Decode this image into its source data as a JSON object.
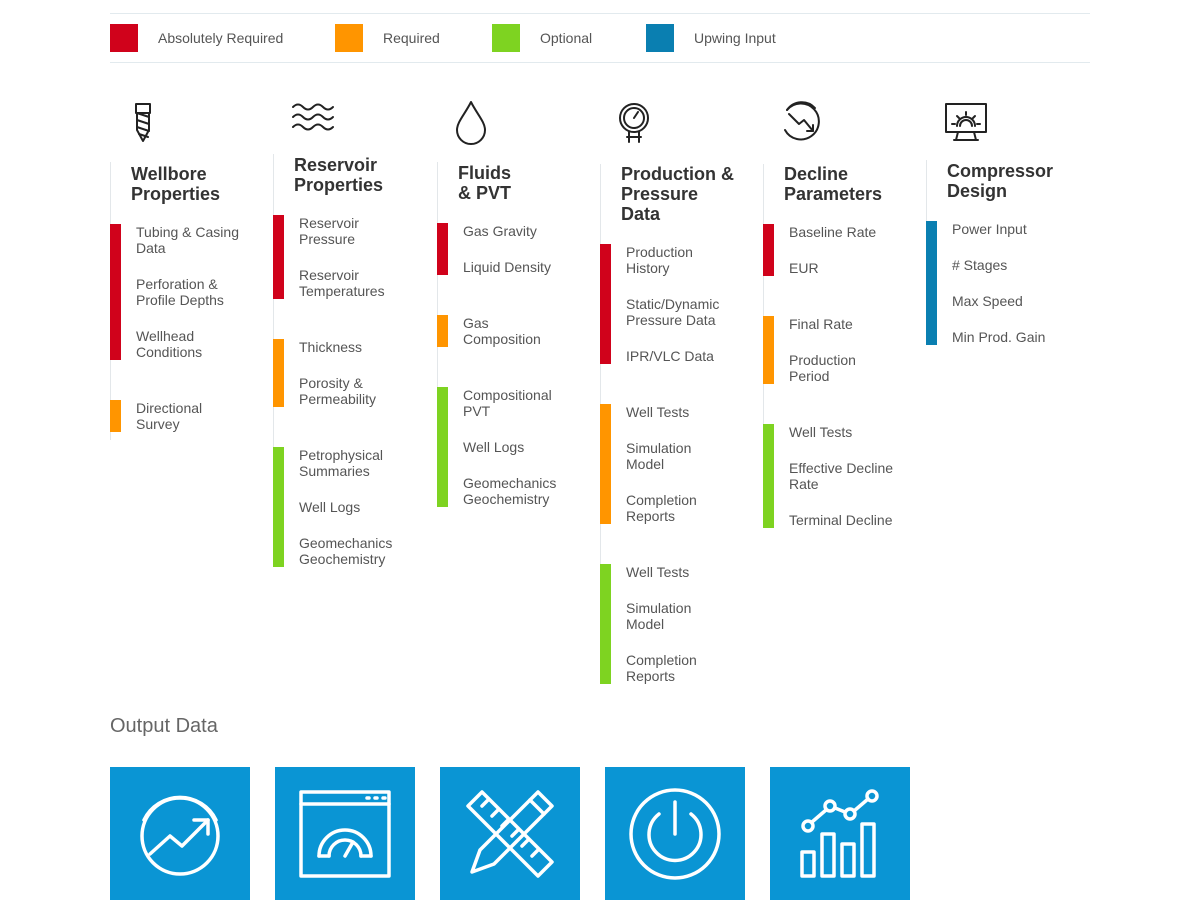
{
  "legend": [
    {
      "label": "Absolutely Required",
      "color": "#d0021b"
    },
    {
      "label": "Required",
      "color": "#ff9500"
    },
    {
      "label": "Optional",
      "color": "#7ed321"
    },
    {
      "label": "Upwing Input",
      "color": "#0a7fb1"
    }
  ],
  "columns": [
    {
      "key": "wellbore",
      "icon": "drill-bit-icon",
      "title": [
        "Wellbore",
        "Properties"
      ],
      "groups": [
        {
          "level": "Absolutely Required",
          "color": "#d0021b",
          "items": [
            [
              "Tubing & Casing",
              "Data"
            ],
            [
              "Perforation &",
              "Profile Depths"
            ],
            [
              "Wellhead",
              "Conditions"
            ]
          ]
        },
        {
          "level": "Required",
          "color": "#ff9500",
          "items": [
            [
              "Directional",
              "Survey"
            ]
          ]
        }
      ]
    },
    {
      "key": "reservoir",
      "icon": "waves-icon",
      "title": [
        "Reservoir",
        "Properties"
      ],
      "groups": [
        {
          "level": "Absolutely Required",
          "color": "#d0021b",
          "items": [
            [
              "Reservoir",
              "Pressure"
            ],
            [
              "Reservoir",
              "Temperatures"
            ]
          ]
        },
        {
          "level": "Required",
          "color": "#ff9500",
          "items": [
            [
              "Thickness"
            ],
            [
              "Porosity &",
              "Permeability"
            ]
          ]
        },
        {
          "level": "Optional",
          "color": "#7ed321",
          "items": [
            [
              "Petrophysical",
              "Summaries"
            ],
            [
              "Well Logs"
            ],
            [
              "Geomechanics",
              "Geochemistry"
            ]
          ]
        }
      ]
    },
    {
      "key": "fluids",
      "icon": "droplet-icon",
      "title": [
        "Fluids",
        "& PVT"
      ],
      "groups": [
        {
          "level": "Absolutely Required",
          "color": "#d0021b",
          "items": [
            [
              "Gas Gravity"
            ],
            [
              "Liquid Density"
            ]
          ]
        },
        {
          "level": "Required",
          "color": "#ff9500",
          "items": [
            [
              "Gas",
              "Composition"
            ]
          ]
        },
        {
          "level": "Optional",
          "color": "#7ed321",
          "items": [
            [
              "Compositional",
              "PVT"
            ],
            [
              "Well Logs"
            ],
            [
              "Geomechanics",
              "Geochemistry"
            ]
          ]
        }
      ]
    },
    {
      "key": "production",
      "icon": "pressure-gauge-icon",
      "title": [
        "Production &",
        "Pressure",
        "Data"
      ],
      "groups": [
        {
          "level": "Absolutely Required",
          "color": "#d0021b",
          "items": [
            [
              "Production",
              "History"
            ],
            [
              "Static/Dynamic",
              "Pressure Data"
            ],
            [
              "IPR/VLC Data"
            ]
          ]
        },
        {
          "level": "Required",
          "color": "#ff9500",
          "items": [
            [
              "Well Tests"
            ],
            [
              "Simulation",
              "Model"
            ],
            [
              "Completion",
              "Reports"
            ]
          ]
        },
        {
          "level": "Optional",
          "color": "#7ed321",
          "items": [
            [
              "Well Tests"
            ],
            [
              "Simulation",
              "Model"
            ],
            [
              "Completion",
              "Reports"
            ]
          ]
        }
      ]
    },
    {
      "key": "decline",
      "icon": "decline-chart-icon",
      "title": [
        "Decline",
        "Parameters"
      ],
      "groups": [
        {
          "level": "Absolutely Required",
          "color": "#d0021b",
          "items": [
            [
              "Baseline Rate"
            ],
            [
              "EUR"
            ]
          ]
        },
        {
          "level": "Required",
          "color": "#ff9500",
          "items": [
            [
              "Final Rate"
            ],
            [
              "Production",
              "Period"
            ]
          ]
        },
        {
          "level": "Optional",
          "color": "#7ed321",
          "items": [
            [
              "Well Tests"
            ],
            [
              "Effective Decline",
              "Rate"
            ],
            [
              "Terminal Decline"
            ]
          ]
        }
      ]
    },
    {
      "key": "compressor",
      "icon": "compressor-monitor-icon",
      "title": [
        "Compressor",
        "Design"
      ],
      "groups": [
        {
          "level": "Upwing Input",
          "color": "#0a7fb1",
          "items": [
            [
              "Power Input"
            ],
            [
              "# Stages"
            ],
            [
              "Max Speed"
            ],
            [
              "Min Prod. Gain"
            ]
          ]
        }
      ]
    }
  ],
  "output": {
    "title": "Output Data",
    "tile_color": "#0a95d4",
    "tiles": [
      {
        "icon": "trend-up-circle-icon"
      },
      {
        "icon": "dashboard-gauge-icon"
      },
      {
        "icon": "ruler-pencil-icon"
      },
      {
        "icon": "power-icon"
      },
      {
        "icon": "bar-line-chart-icon"
      }
    ]
  }
}
